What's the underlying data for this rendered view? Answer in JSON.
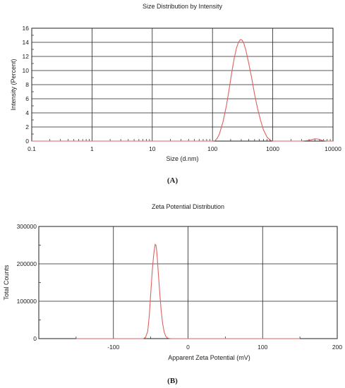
{
  "chart_data": [
    {
      "type": "line",
      "title": "Size Distribution by Intensity",
      "xlabel": "Size (d.nm)",
      "ylabel": "Intensity (Percent)",
      "xscale": "log",
      "xlim": [
        0.1,
        10000
      ],
      "ylim": [
        0,
        16
      ],
      "x_ticks": [
        0.1,
        1,
        10,
        100,
        1000,
        10000
      ],
      "x_tick_labels": [
        "0.1",
        "1",
        "10",
        "100",
        "1000",
        "10000"
      ],
      "y_ticks": [
        0,
        2,
        4,
        6,
        8,
        10,
        12,
        14,
        16
      ],
      "y_tick_labels": [
        "0",
        "2",
        "4",
        "6",
        "8",
        "10",
        "12",
        "14",
        "16"
      ],
      "grid": true,
      "line_color": "#e06060",
      "series": [
        {
          "x": [
            0.1,
            100,
            110,
            120,
            130,
            150,
            170,
            190,
            210,
            230,
            250,
            270,
            290,
            310,
            330,
            360,
            400,
            450,
            500,
            560,
            630,
            700,
            800,
            900,
            1000,
            2000,
            3000,
            4000,
            4500,
            5000,
            5500,
            6000,
            6500,
            7000,
            8000,
            10000
          ],
          "y": [
            0,
            0,
            0.05,
            0.4,
            1.0,
            2.8,
            5.0,
            7.5,
            9.9,
            11.8,
            13.2,
            14.0,
            14.4,
            14.3,
            13.9,
            12.8,
            11.0,
            8.8,
            6.6,
            4.6,
            2.9,
            1.6,
            0.6,
            0.15,
            0,
            0,
            0,
            0.1,
            0.22,
            0.32,
            0.3,
            0.22,
            0.12,
            0.05,
            0,
            0
          ]
        }
      ],
      "caption": "(A)"
    },
    {
      "type": "line",
      "title": "Zeta Potential Distribution",
      "xlabel": "Apparent Zeta Potential (mV)",
      "ylabel": "Total Counts",
      "xlim": [
        -200,
        200
      ],
      "ylim": [
        0,
        300000
      ],
      "x_ticks": [
        -100,
        0,
        100,
        200
      ],
      "x_tick_labels": [
        "-100",
        "0",
        "100",
        "200"
      ],
      "x_grid": [
        -100,
        0,
        100
      ],
      "y_ticks": [
        0,
        100000,
        200000,
        300000
      ],
      "y_tick_labels": [
        "0",
        "100000",
        "200000",
        "300000"
      ],
      "grid": true,
      "line_color": "#e06060",
      "series": [
        {
          "x": [
            -150,
            -60,
            -57,
            -54,
            -52,
            -50,
            -48,
            -46,
            -45,
            -44,
            -43,
            -42,
            -41,
            -40,
            -38,
            -36,
            -34,
            -32,
            -30,
            -28,
            -25,
            -22,
            150
          ],
          "y": [
            0,
            0,
            3000,
            20000,
            60000,
            120000,
            180000,
            225000,
            240000,
            252000,
            250000,
            235000,
            210000,
            180000,
            125000,
            75000,
            40000,
            18000,
            7000,
            2000,
            300,
            0,
            0
          ]
        }
      ],
      "caption": "(B)"
    }
  ]
}
